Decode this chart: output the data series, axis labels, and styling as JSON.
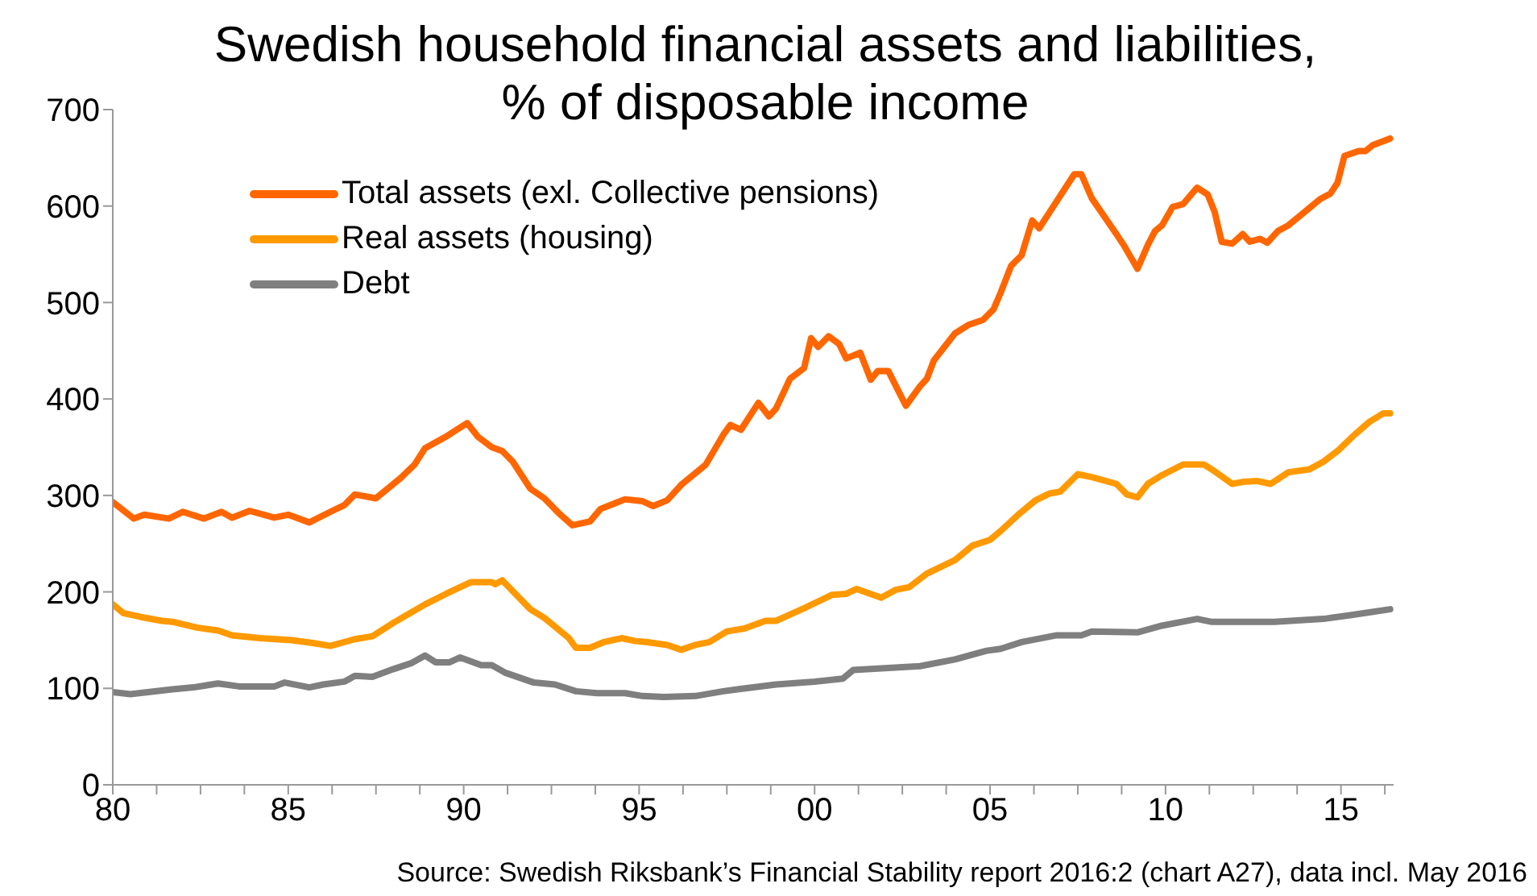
{
  "chart_data": {
    "type": "line",
    "title": "Swedish household financial assets and liabilities,\n% of disposable income",
    "annotations": [
      "Source: Swedish Riksbank’s Financial Stability report 2016:2 (chart A27), data incl. May 2016"
    ],
    "legend": "top left",
    "grid": false,
    "marker": "none",
    "line_style": "solid",
    "xlim": [
      1980,
      2016.5
    ],
    "ylim": [
      0,
      700
    ],
    "xticks": [
      {
        "value": 1980,
        "label": "80"
      },
      {
        "value": 1981.25,
        "label": null
      },
      {
        "value": 1982.5,
        "label": null
      },
      {
        "value": 1983.75,
        "label": null
      },
      {
        "value": 1985,
        "label": "85"
      },
      {
        "value": 1986.25,
        "label": null
      },
      {
        "value": 1987.5,
        "label": null
      },
      {
        "value": 1988.75,
        "label": null
      },
      {
        "value": 1990,
        "label": "90"
      },
      {
        "value": 1991.25,
        "label": null
      },
      {
        "value": 1992.5,
        "label": null
      },
      {
        "value": 1993.75,
        "label": null
      },
      {
        "value": 1995,
        "label": "95"
      },
      {
        "value": 1996.25,
        "label": null
      },
      {
        "value": 1997.5,
        "label": null
      },
      {
        "value": 1998.75,
        "label": null
      },
      {
        "value": 2000,
        "label": "00"
      },
      {
        "value": 2001.25,
        "label": null
      },
      {
        "value": 2002.5,
        "label": null
      },
      {
        "value": 2003.75,
        "label": null
      },
      {
        "value": 2005,
        "label": "05"
      },
      {
        "value": 2006.25,
        "label": null
      },
      {
        "value": 2007.5,
        "label": null
      },
      {
        "value": 2008.75,
        "label": null
      },
      {
        "value": 2010,
        "label": "10"
      },
      {
        "value": 2011.25,
        "label": null
      },
      {
        "value": 2012.5,
        "label": null
      },
      {
        "value": 2013.75,
        "label": null
      },
      {
        "value": 2015,
        "label": "15"
      },
      {
        "value": 2016.25,
        "label": null
      }
    ],
    "yticks": [
      0,
      100,
      200,
      300,
      400,
      500,
      600,
      700
    ],
    "series": [
      {
        "name": "Total assets (exl. Collective pensions)",
        "color": "#ff6600",
        "x": [
          1980.0,
          1980.6,
          1980.9,
          1981.6,
          1982.0,
          1982.6,
          1983.1,
          1983.4,
          1983.9,
          1984.6,
          1985.0,
          1985.6,
          1986.2,
          1986.6,
          1986.9,
          1987.5,
          1988.2,
          1988.6,
          1988.9,
          1989.5,
          1989.8,
          1990.1,
          1990.4,
          1990.8,
          1991.1,
          1991.4,
          1991.9,
          1992.3,
          1992.7,
          1993.1,
          1993.6,
          1993.9,
          1994.6,
          1995.1,
          1995.4,
          1995.8,
          1996.2,
          1996.9,
          1997.4,
          1997.6,
          1997.9,
          1998.4,
          1998.7,
          1998.9,
          1999.3,
          1999.7,
          1999.9,
          2000.1,
          2000.4,
          2000.7,
          2000.9,
          2001.3,
          2001.6,
          2001.8,
          2002.1,
          2002.6,
          2003.0,
          2003.2,
          2003.4,
          2004.0,
          2004.4,
          2004.8,
          2005.1,
          2005.3,
          2005.6,
          2005.9,
          2006.2,
          2006.4,
          2006.9,
          2007.4,
          2007.6,
          2007.9,
          2008.6,
          2008.8,
          2009.2,
          2009.5,
          2009.7,
          2009.9,
          2010.2,
          2010.5,
          2010.9,
          2011.2,
          2011.4,
          2011.6,
          2011.9,
          2012.2,
          2012.4,
          2012.7,
          2012.9,
          2013.2,
          2013.5,
          2013.9,
          2014.4,
          2014.7,
          2014.9,
          2015.1,
          2015.5,
          2015.7,
          2015.9,
          2016.4
        ],
        "values": [
          293,
          276,
          280,
          276,
          283,
          276,
          283,
          277,
          284,
          277,
          280,
          272,
          283,
          290,
          301,
          297,
          318,
          332,
          349,
          361,
          368,
          375,
          361,
          350,
          346,
          335,
          307,
          297,
          282,
          269,
          273,
          286,
          296,
          294,
          289,
          295,
          311,
          332,
          363,
          373,
          368,
          396,
          382,
          390,
          421,
          432,
          463,
          454,
          465,
          457,
          442,
          448,
          420,
          429,
          429,
          393,
          413,
          421,
          440,
          468,
          477,
          482,
          493,
          510,
          538,
          549,
          585,
          577,
          605,
          633,
          633,
          608,
          571,
          560,
          535,
          560,
          574,
          580,
          599,
          602,
          619,
          612,
          594,
          563,
          561,
          571,
          563,
          566,
          562,
          574,
          580,
          592,
          607,
          613,
          624,
          652,
          657,
          657,
          663,
          670
        ]
      },
      {
        "name": "Real assets (housing)",
        "color": "#ff9900",
        "x": [
          1980.0,
          1980.3,
          1980.8,
          1981.4,
          1981.7,
          1982.4,
          1983.0,
          1983.4,
          1984.2,
          1985.1,
          1985.7,
          1986.2,
          1986.9,
          1987.4,
          1988.0,
          1988.9,
          1989.5,
          1990.2,
          1990.8,
          1990.9,
          1991.1,
          1991.9,
          1992.3,
          1993.0,
          1993.2,
          1993.6,
          1994.0,
          1994.5,
          1994.9,
          1995.2,
          1995.8,
          1996.2,
          1996.6,
          1997.0,
          1997.5,
          1998.0,
          1998.6,
          1998.9,
          1999.7,
          2000.5,
          2000.9,
          2001.2,
          2001.9,
          2002.3,
          2002.7,
          2003.2,
          2004.0,
          2004.5,
          2005.0,
          2005.3,
          2005.8,
          2006.3,
          2006.7,
          2007.0,
          2007.5,
          2007.9,
          2008.6,
          2008.9,
          2009.2,
          2009.5,
          2009.9,
          2010.5,
          2011.1,
          2011.4,
          2011.9,
          2012.2,
          2012.6,
          2013.0,
          2013.5,
          2014.1,
          2014.5,
          2014.9,
          2015.3,
          2015.8,
          2016.2,
          2016.4
        ],
        "values": [
          187,
          178,
          174,
          170,
          169,
          163,
          160,
          155,
          152,
          150,
          147,
          144,
          151,
          154,
          168,
          187,
          198,
          210,
          210,
          208,
          212,
          182,
          173,
          152,
          142,
          142,
          148,
          152,
          149,
          148,
          145,
          140,
          145,
          148,
          159,
          162,
          170,
          170,
          183,
          197,
          198,
          203,
          194,
          202,
          205,
          219,
          233,
          248,
          254,
          263,
          280,
          295,
          302,
          304,
          322,
          319,
          312,
          301,
          298,
          312,
          321,
          332,
          332,
          325,
          312,
          314,
          315,
          312,
          324,
          327,
          335,
          346,
          360,
          376,
          385,
          385
        ]
      },
      {
        "name": "Debt",
        "color": "#7f7f7f",
        "x": [
          1980.0,
          1980.5,
          1981.0,
          1981.7,
          1982.3,
          1983.0,
          1983.6,
          1984.6,
          1984.9,
          1985.6,
          1986.0,
          1986.6,
          1986.9,
          1987.4,
          1988.0,
          1988.5,
          1988.9,
          1989.2,
          1989.6,
          1989.9,
          1990.5,
          1990.8,
          1991.2,
          1992.0,
          1992.6,
          1993.2,
          1993.8,
          1994.6,
          1995.1,
          1995.7,
          1996.6,
          1997.4,
          1997.8,
          1998.9,
          2000.0,
          2000.8,
          2001.1,
          2002.0,
          2003.0,
          2004.0,
          2004.9,
          2005.3,
          2005.9,
          2006.9,
          2007.6,
          2007.9,
          2009.2,
          2009.9,
          2010.9,
          2011.3,
          2012.2,
          2013.1,
          2014.5,
          2015.3,
          2016.4
        ],
        "values": [
          96,
          94,
          96,
          99,
          101,
          105,
          102,
          102,
          106,
          101,
          104,
          107,
          113,
          112,
          120,
          126,
          134,
          127,
          127,
          132,
          124,
          124,
          116,
          106,
          104,
          97,
          95,
          95,
          92,
          91,
          92,
          97,
          99,
          104,
          107,
          110,
          119,
          121,
          123,
          130,
          139,
          141,
          148,
          155,
          155,
          159,
          158,
          165,
          172,
          169,
          169,
          169,
          172,
          176,
          182
        ]
      }
    ]
  }
}
